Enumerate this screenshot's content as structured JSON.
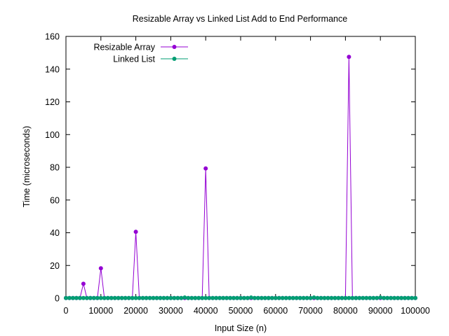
{
  "chart_data": {
    "type": "line",
    "title": "Resizable Array vs Linked List Add to End Performance",
    "xlabel": "Input Size (n)",
    "ylabel": "Time (microseconds)",
    "xlim": [
      0,
      100000
    ],
    "ylim": [
      0,
      160
    ],
    "xticks": [
      0,
      10000,
      20000,
      30000,
      40000,
      50000,
      60000,
      70000,
      80000,
      90000,
      100000
    ],
    "xtick_labels": [
      "0",
      "10000",
      "20000",
      "30000",
      "40000",
      "50000",
      "60000",
      "70000",
      "80000",
      "90000",
      "100000"
    ],
    "yticks": [
      0,
      20,
      40,
      60,
      80,
      100,
      120,
      140,
      160
    ],
    "ytick_labels": [
      "0",
      "20",
      "40",
      "60",
      "80",
      "100",
      "120",
      "140",
      "160"
    ],
    "grid": false,
    "legend_position": "top-left",
    "x_step": 1000,
    "series": [
      {
        "name": "Resizable Array",
        "color": "#9400d3",
        "marker": "circle",
        "baseline": 0.1,
        "peaks": [
          [
            5000,
            8.8
          ],
          [
            10000,
            18.3
          ],
          [
            20000,
            40.6
          ],
          [
            40000,
            79.3
          ],
          [
            81000,
            147.5
          ]
        ]
      },
      {
        "name": "Linked List",
        "color": "#009e73",
        "marker": "circle",
        "baseline": 0.1,
        "peaks": [
          [
            34000,
            0.4
          ],
          [
            53000,
            0.4
          ],
          [
            71000,
            0.4
          ],
          [
            90000,
            0.4
          ]
        ]
      }
    ]
  }
}
